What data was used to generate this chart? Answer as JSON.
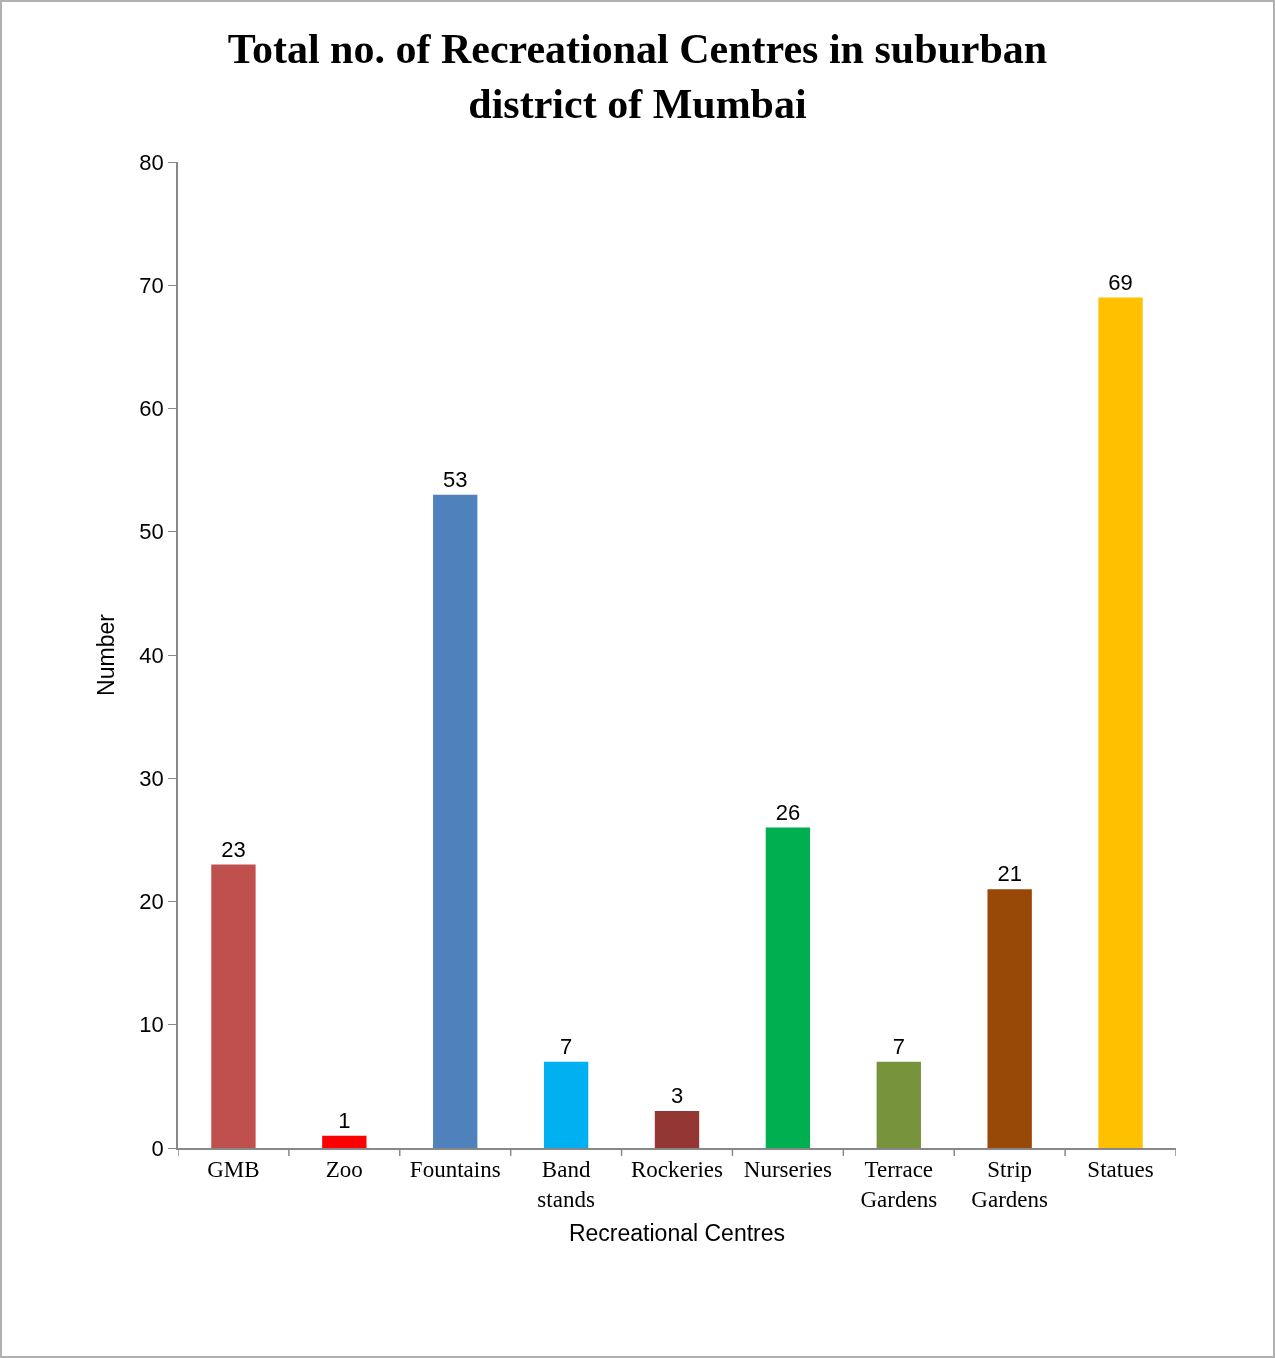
{
  "chart_data": {
    "type": "bar",
    "title": "Total no. of Recreational Centres in suburban district of Mumbai",
    "xlabel": "Recreational Centres",
    "ylabel": "Number",
    "categories": [
      "GMB",
      "Zoo",
      "Fountains",
      "Band stands",
      "Rockeries",
      "Nurseries",
      "Terrace Gardens",
      "Strip Gardens",
      "Statues"
    ],
    "values": [
      23,
      1,
      53,
      7,
      3,
      26,
      7,
      21,
      69
    ],
    "colors": [
      "#c0504d",
      "#ff0000",
      "#4f81bd",
      "#00b0f0",
      "#943634",
      "#00b050",
      "#77933c",
      "#984807",
      "#ffc000"
    ],
    "ylim": [
      0,
      80
    ],
    "yticks": [
      0,
      10,
      20,
      30,
      40,
      50,
      60,
      70,
      80
    ],
    "grid": false,
    "data_labels": true
  }
}
